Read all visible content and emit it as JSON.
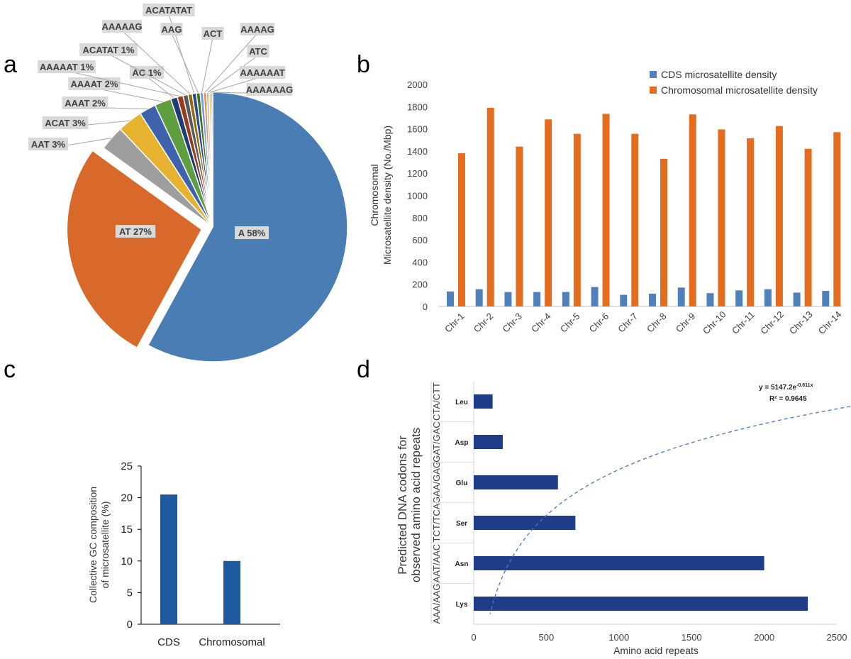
{
  "panels": {
    "a": "a",
    "b": "b",
    "c": "c",
    "d": "d"
  },
  "chart_data": [
    {
      "id": "a",
      "type": "pie",
      "title": "",
      "slices": [
        {
          "label": "A 58%",
          "name": "A",
          "value": 58,
          "color": "#4b7db5"
        },
        {
          "label": "AT 27%",
          "name": "AT",
          "value": 27,
          "color": "#d8692b"
        },
        {
          "label": "AAT 3%",
          "name": "AAT",
          "value": 3,
          "color": "#9e9e9e"
        },
        {
          "label": "ACAT 3%",
          "name": "ACAT",
          "value": 3,
          "color": "#e6b22f"
        },
        {
          "label": "AAAT 2%",
          "name": "AAAT",
          "value": 2,
          "color": "#3f63ab"
        },
        {
          "label": "AAAAT 2%",
          "name": "AAAAT",
          "value": 2,
          "color": "#5e9e3e"
        },
        {
          "label": "AC 1%",
          "name": "AC",
          "value": 0.8,
          "color": "#1f3d73"
        },
        {
          "label": "AAAAAT 1%",
          "name": "AAAAAT",
          "value": 0.7,
          "color": "#9a3b1c"
        },
        {
          "label": "ACATAT 1%",
          "name": "ACATAT",
          "value": 0.6,
          "color": "#5a5a5a"
        },
        {
          "label": "AAAAAG",
          "name": "AAAAAG",
          "value": 0.5,
          "color": "#8f6a12"
        },
        {
          "label": "ACATATAT",
          "name": "ACATATAT",
          "value": 0.5,
          "color": "#2b4a82"
        },
        {
          "label": "AAG",
          "name": "AAG",
          "value": 0.45,
          "color": "#3e6e2a"
        },
        {
          "label": "ACT",
          "name": "ACT",
          "value": 0.4,
          "color": "#6f9fd6"
        },
        {
          "label": "AAAAG",
          "name": "AAAAG",
          "value": 0.35,
          "color": "#f08a4b"
        },
        {
          "label": "ATC",
          "name": "ATC",
          "value": 0.3,
          "color": "#b8b8b8"
        },
        {
          "label": "AAAAAAT",
          "name": "AAAAAAT",
          "value": 0.25,
          "color": "#f3c44f"
        },
        {
          "label": "AAAAAAG",
          "name": "AAAAAAG",
          "value": 0.2,
          "color": "#7aa3db"
        }
      ]
    },
    {
      "id": "b",
      "type": "bar",
      "categories": [
        "Chr-1",
        "Chr-2",
        "Chr-3",
        "Chr-4",
        "Chr-5",
        "Chr-6",
        "Chr-7",
        "Chr-8",
        "Chr-9",
        "Chr-10",
        "Chr-11",
        "Chr-12",
        "Chr-13",
        "Chr-14"
      ],
      "series": [
        {
          "name": "CDS microsatellite density",
          "color": "#4f81bd",
          "values": [
            135,
            155,
            130,
            130,
            130,
            175,
            105,
            115,
            170,
            120,
            145,
            155,
            125,
            140
          ]
        },
        {
          "name": "Chromosomal microsatellite density",
          "color": "#e46c1f",
          "values": [
            1380,
            1790,
            1440,
            1685,
            1555,
            1735,
            1555,
            1330,
            1730,
            1595,
            1515,
            1625,
            1420,
            1570
          ]
        }
      ],
      "ylabel_line1": "Chromosomal",
      "ylabel_line2": "Microsatellite density (No./Mbp)",
      "ylim": [
        0,
        2000
      ],
      "yticks": [
        "0",
        "200",
        "400",
        "600",
        "800",
        "1000",
        "1200",
        "1400",
        "1600",
        "1800",
        "2000"
      ],
      "legend": "top-right",
      "grid": false
    },
    {
      "id": "c",
      "type": "bar",
      "categories": [
        "CDS",
        "Chromosomal"
      ],
      "values": [
        20.5,
        10
      ],
      "color": "#1f5aa0",
      "ylabel_line1": "Collective GC composition",
      "ylabel_line2": "of microsatellite (%)",
      "ylim": [
        0,
        25
      ],
      "yticks": [
        "0",
        "5",
        "10",
        "15",
        "20",
        "25"
      ]
    },
    {
      "id": "d",
      "type": "bar",
      "orientation": "horizontal",
      "categories": [
        "Leu",
        "Asp",
        "Glu",
        "Ser",
        "Asn",
        "Lys"
      ],
      "codons": [
        "CTA/CTT",
        "GAT/GAC",
        "GAA/GAG",
        "TCT/TCA",
        "AAT/AAC",
        "AAA/AAG"
      ],
      "values": [
        130,
        200,
        580,
        700,
        2000,
        2300
      ],
      "color": "#1f3c88",
      "xlabel": "Amino acid repeats",
      "ylabel_line1": "Predicted DNA codons for",
      "ylabel_line2": "observed amino acid repeats",
      "xlim": [
        0,
        2500
      ],
      "xticks": [
        "0",
        "500",
        "1000",
        "1500",
        "2000",
        "2500"
      ],
      "trendline": {
        "a": 5147.2,
        "b": -0.611,
        "color": "#4a78c2"
      },
      "equation": {
        "prefix": "y = 5147.2e",
        "exponent": "-0.611x",
        "r2": "R² = 0.9645"
      }
    }
  ]
}
